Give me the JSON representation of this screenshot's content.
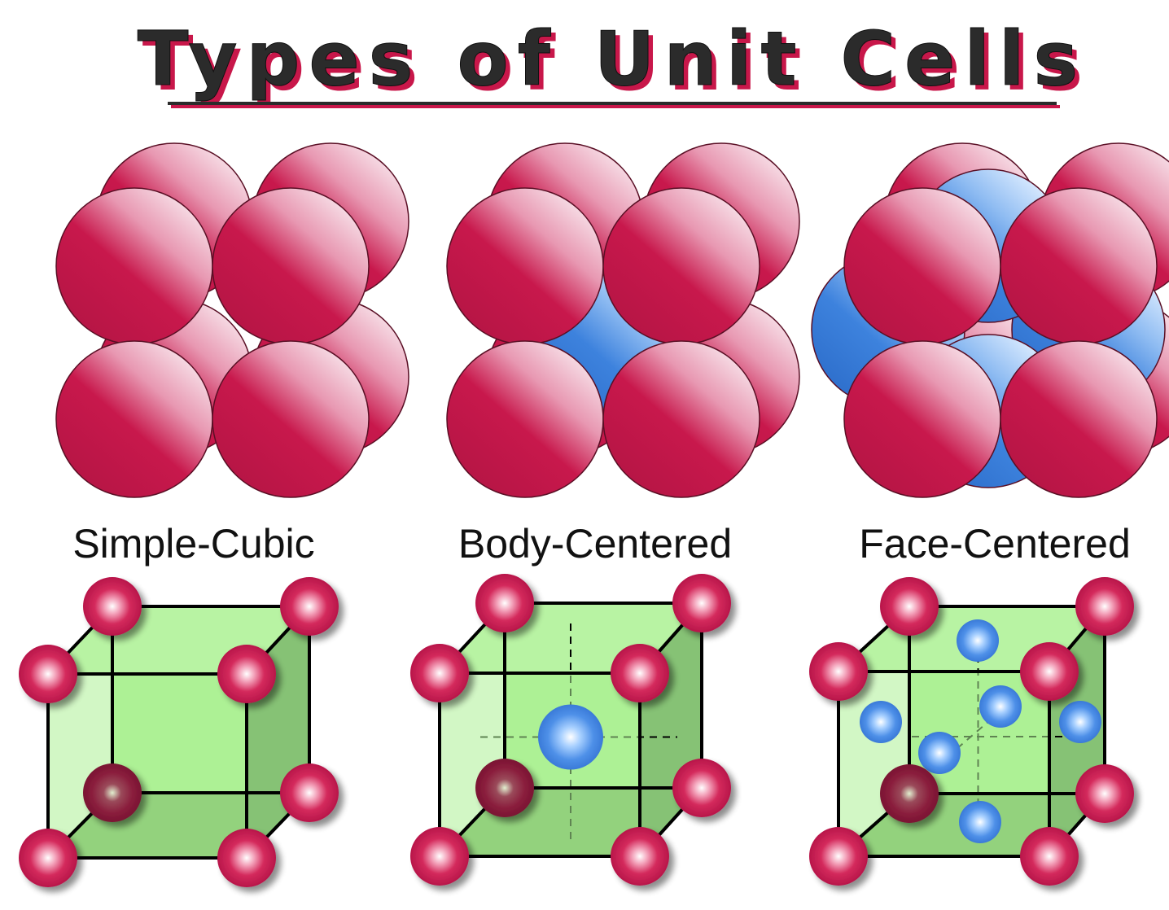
{
  "title": "Types of Unit Cells",
  "colors": {
    "atom": "#c0184a",
    "interstitial_atom": "#3b7fd9",
    "cube_face": "#adf196",
    "cube_side": "#86c275",
    "cube_bottom": "#74ad61",
    "title_shadow": "#c8174a",
    "title_text": "#2b2b2b"
  },
  "cells": [
    {
      "label": "Simple-Cubic"
    },
    {
      "label": "Body-Centered"
    },
    {
      "label": "Face-Centered"
    }
  ]
}
